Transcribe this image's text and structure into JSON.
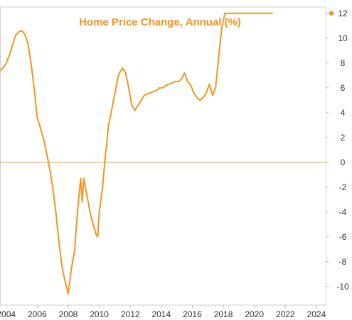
{
  "chart_data": {
    "type": "line",
    "title": "Home Price Change, Annual (%)",
    "xlabel": "",
    "ylabel": "",
    "xlim": [
      2003.6,
      2024.6
    ],
    "ylim": [
      -11.5,
      12.5
    ],
    "x_ticks": [
      "2004",
      "2006",
      "2008",
      "2010",
      "2012",
      "2014",
      "2016",
      "2018",
      "2020",
      "2022",
      "2024"
    ],
    "y_ticks": [
      "12",
      "10",
      "8",
      "6",
      "4",
      "2",
      "0",
      "-2",
      "-4",
      "-6",
      "-8",
      "-10"
    ],
    "zero_line": 0,
    "last_value_marker": 12,
    "color": "#f7931e",
    "grid": false,
    "series": [
      {
        "x": [
          2003.6,
          2003.8,
          2004.0,
          2004.2,
          2004.4,
          2004.6,
          2004.8,
          2005.0,
          2005.2,
          2005.4,
          2005.6,
          2005.8,
          2006.0,
          2006.2,
          2006.4,
          2006.6,
          2006.8,
          2007.0,
          2007.2,
          2007.4,
          2007.6,
          2007.8,
          2008.0,
          2008.2,
          2008.4,
          2008.6,
          2008.8,
          2008.9,
          2009.0,
          2009.2,
          2009.4,
          2009.6,
          2009.8,
          2009.9,
          2010.0,
          2010.2,
          2010.4,
          2010.6,
          2010.8,
          2011.0,
          2011.2,
          2011.3,
          2011.5,
          2011.7,
          2011.9,
          2012.1,
          2012.3,
          2012.5,
          2012.7,
          2012.9,
          2013.1,
          2013.3,
          2013.5,
          2013.7,
          2013.9,
          2014.1,
          2014.3,
          2014.5,
          2014.7,
          2014.9,
          2015.1,
          2015.3,
          2015.5,
          2015.7,
          2015.9,
          2016.1,
          2016.3,
          2016.5,
          2016.7,
          2016.9,
          2017.1,
          2017.3,
          2017.5,
          2017.7,
          2017.9,
          2018.1,
          2018.3,
          2018.5,
          2018.7,
          2018.9,
          2019.1,
          2019.3,
          2019.5,
          2019.7,
          2019.9,
          2020.1,
          2020.3,
          2020.5,
          2020.6,
          2020.8,
          2021.0,
          2021.2
        ],
        "values": [
          7.4,
          7.6,
          8.0,
          8.6,
          9.4,
          10.2,
          10.5,
          10.6,
          10.3,
          9.6,
          8.0,
          6.0,
          3.6,
          2.8,
          1.9,
          0.8,
          -0.5,
          -2.0,
          -4.0,
          -6.4,
          -8.4,
          -9.6,
          -10.6,
          -8.6,
          -7.2,
          -4.0,
          -1.3,
          -3.2,
          -1.3,
          -2.6,
          -4.0,
          -5.0,
          -5.8,
          -6.0,
          -4.0,
          -2.2,
          0.6,
          3.0,
          4.2,
          5.5,
          6.8,
          7.2,
          7.6,
          7.2,
          6.0,
          4.6,
          4.2,
          4.6,
          5.0,
          5.4,
          5.5,
          5.6,
          5.7,
          5.8,
          6.0,
          6.0,
          6.2,
          6.3,
          6.4,
          6.5,
          6.5,
          6.7,
          7.2,
          6.5,
          6.2,
          5.6,
          5.2,
          5.0,
          5.2,
          5.6,
          6.3,
          5.4,
          6.0,
          8.5,
          10.8,
          12.0,
          12.0,
          12.0,
          12.0,
          12.0,
          12.0,
          12.0,
          12.0,
          12.0,
          12.0,
          12.0,
          12.0,
          12.0,
          12.0,
          12.0,
          12.0,
          12.0
        ]
      }
    ]
  }
}
